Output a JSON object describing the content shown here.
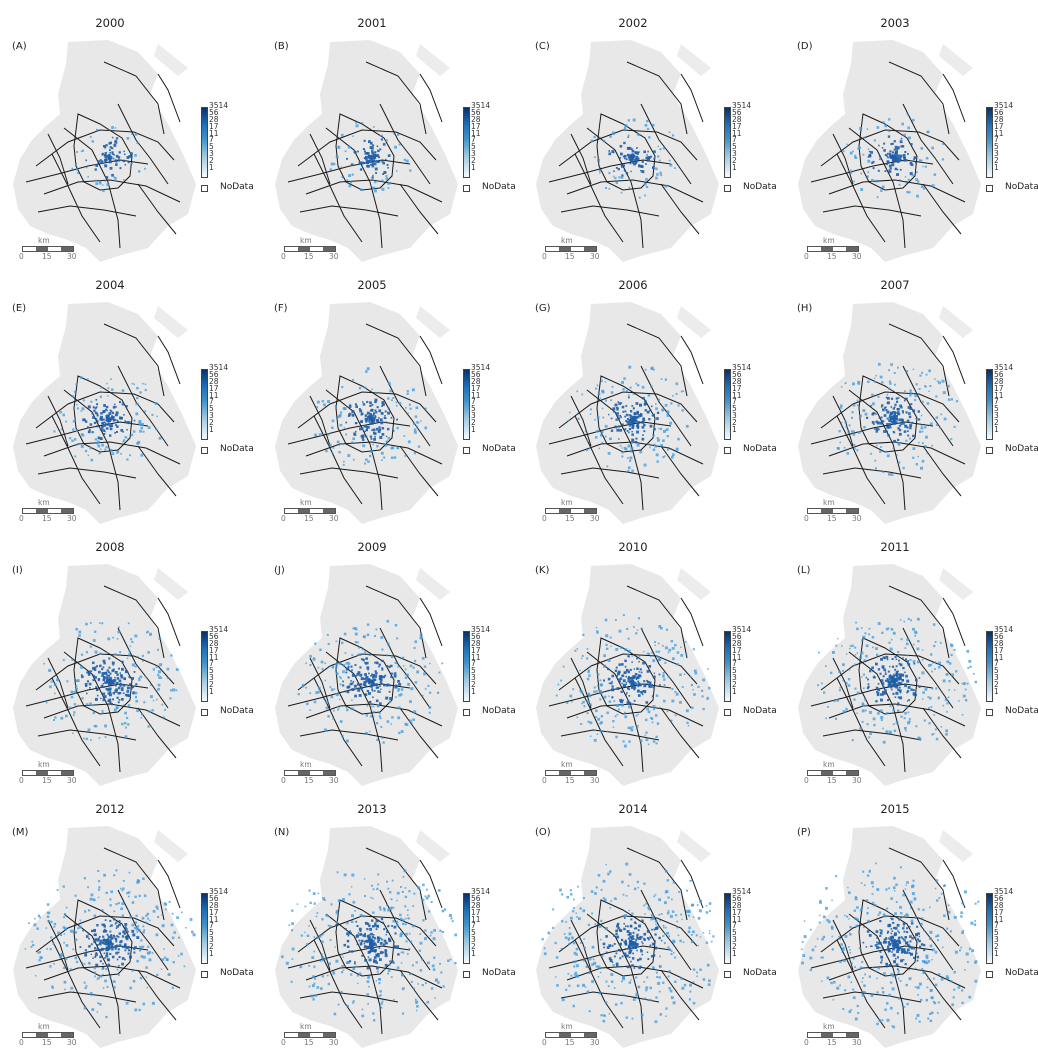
{
  "panels": [
    {
      "year": "2000",
      "letter": "(A)",
      "density": 0.1
    },
    {
      "year": "2001",
      "letter": "(B)",
      "density": 0.14
    },
    {
      "year": "2002",
      "letter": "(C)",
      "density": 0.2
    },
    {
      "year": "2003",
      "letter": "(D)",
      "density": 0.25
    },
    {
      "year": "2004",
      "letter": "(E)",
      "density": 0.3
    },
    {
      "year": "2005",
      "letter": "(F)",
      "density": 0.34
    },
    {
      "year": "2006",
      "letter": "(G)",
      "density": 0.38
    },
    {
      "year": "2007",
      "letter": "(H)",
      "density": 0.42
    },
    {
      "year": "2008",
      "letter": "(I)",
      "density": 0.48
    },
    {
      "year": "2009",
      "letter": "(J)",
      "density": 0.52
    },
    {
      "year": "2010",
      "letter": "(K)",
      "density": 0.56
    },
    {
      "year": "2011",
      "letter": "(L)",
      "density": 0.6
    },
    {
      "year": "2012",
      "letter": "(M)",
      "density": 0.66
    },
    {
      "year": "2013",
      "letter": "(N)",
      "density": 0.72
    },
    {
      "year": "2014",
      "letter": "(O)",
      "density": 0.76
    },
    {
      "year": "2015",
      "letter": "(P)",
      "density": 0.8
    }
  ],
  "legend": {
    "ticks": [
      "3514",
      "56",
      "28",
      "17",
      "11",
      "7",
      "5",
      "3",
      "2",
      "1"
    ],
    "nodata_label": "NoData",
    "colors": {
      "max": "#08306b",
      "high": "#2171b5",
      "mid": "#4292c6",
      "low": "#9ecae1",
      "min": "#f7fbff",
      "nodata": "#ffffff"
    }
  },
  "scalebar": {
    "unit": "km",
    "labels": [
      "0",
      "15",
      "30"
    ]
  },
  "map_colors": {
    "land": "#e8e8e8",
    "roads": "#1a1a1a",
    "points_dark": "#1f5fa8",
    "points_light": "#3b9be0"
  }
}
